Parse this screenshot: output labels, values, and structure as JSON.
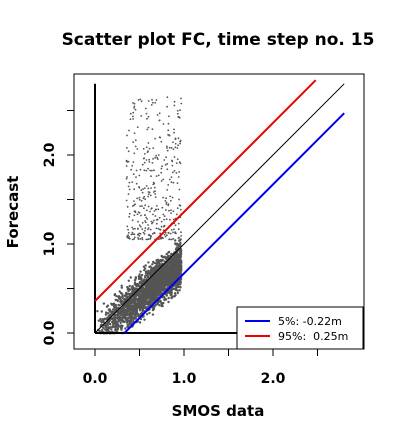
{
  "chart_data": {
    "type": "scatter",
    "title": "Scatter plot FC, time step no. 15",
    "xlabel": "SMOS data",
    "ylabel": "Forecast",
    "xlim": [
      -0.25,
      3.0
    ],
    "ylim": [
      -0.15,
      2.95
    ],
    "x_ticks": [
      0.0,
      0.5,
      1.0,
      1.5,
      2.0,
      2.5
    ],
    "x_tick_labels": [
      "0.0",
      "1.0",
      "2.0"
    ],
    "y_ticks": [
      0.0,
      0.5,
      1.0,
      1.5,
      2.0,
      2.5
    ],
    "y_tick_labels": [
      "0.0",
      "1.0",
      "2.0"
    ],
    "grid": false,
    "legend_position": "bottom-right",
    "point_color": "#555555",
    "scatter_bounds": {
      "x_range": [
        0.0,
        0.97
      ],
      "core_y_range": [
        0.0,
        1.1
      ],
      "sparse_y_max": 2.65
    },
    "reference_lines": [
      {
        "label": "",
        "color": "#000000",
        "intercept": 0.0,
        "slope": 1.0,
        "x": [
          0.0,
          2.8
        ]
      },
      {
        "label": "5%: -0.22m",
        "color": "#0000ee",
        "intercept": -0.33,
        "slope": 1.0,
        "x": [
          0.33,
          2.8
        ]
      },
      {
        "label": "95%:  0.25m",
        "color": "#ee0000",
        "intercept": 0.36,
        "slope": 1.0,
        "x": [
          0.0,
          2.48
        ]
      }
    ],
    "legend": [
      {
        "label": "5%: -0.22m",
        "color": "#0000ee"
      },
      {
        "label": "95%:  0.25m",
        "color": "#ee0000"
      }
    ]
  }
}
